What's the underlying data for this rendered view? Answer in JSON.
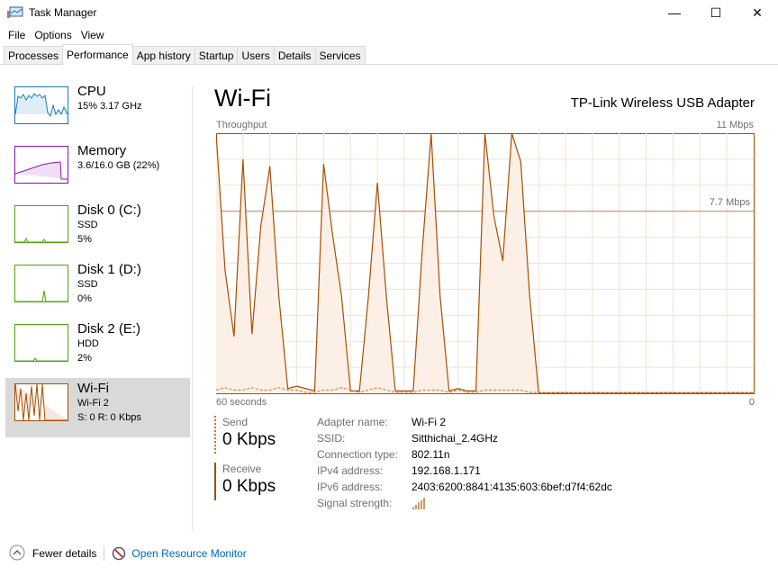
{
  "window": {
    "title": "Task Manager",
    "icon": "task-manager-icon",
    "controls": [
      "minimize",
      "maximize",
      "close"
    ]
  },
  "menu": [
    "File",
    "Options",
    "View"
  ],
  "tabs": [
    "Processes",
    "Performance",
    "App history",
    "Startup",
    "Users",
    "Details",
    "Services"
  ],
  "active_tab": "Performance",
  "sidebar": [
    {
      "name": "CPU",
      "l1": "15%  3.17 GHz",
      "l2": "",
      "color": "#117dbb"
    },
    {
      "name": "Memory",
      "l1": "3.6/16.0 GB (22%)",
      "l2": "",
      "color": "#8b12ae"
    },
    {
      "name": "Disk 0 (C:)",
      "l1": "SSD",
      "l2": "5%",
      "color": "#4da60c"
    },
    {
      "name": "Disk 1 (D:)",
      "l1": "SSD",
      "l2": "0%",
      "color": "#4da60c"
    },
    {
      "name": "Disk 2 (E:)",
      "l1": "HDD",
      "l2": "2%",
      "color": "#4da60c"
    },
    {
      "name": "Wi-Fi",
      "l1": "Wi-Fi 2",
      "l2": "S: 0 R: 0 Kbps",
      "color": "#a74f01"
    }
  ],
  "main": {
    "title": "Wi-Fi",
    "adapter": "TP-Link Wireless USB Adapter",
    "graph_label": "Throughput",
    "max_label": "11 Mbps",
    "mid_label": "7.7 Mbps",
    "x_left": "60 seconds",
    "x_right": "0"
  },
  "chart_data": {
    "type": "area",
    "ylim": [
      0,
      11
    ],
    "xlim": [
      60,
      0
    ],
    "reference_line": 7.7,
    "series": [
      {
        "name": "Receive",
        "values": [
          11,
          5.2,
          2.4,
          9.9,
          2.5,
          7.1,
          9.6,
          4.1,
          0.2,
          0.3,
          0.2,
          0.1,
          9.7,
          6.7,
          4.1,
          0.1,
          0.1,
          4.1,
          8.9,
          4.1,
          0.1,
          0.1,
          0.1,
          6.0,
          11,
          4.1,
          0.1,
          0.2,
          0.1,
          0.1,
          11,
          7.5,
          5.6,
          11,
          9.8,
          4.1,
          0,
          0,
          0,
          0,
          0,
          0,
          0,
          0,
          0,
          0,
          0,
          0,
          0,
          0,
          0,
          0,
          0,
          0,
          0,
          0,
          0,
          0,
          0,
          0,
          0
        ]
      },
      {
        "name": "Send",
        "values": [
          0.1,
          0.2,
          0.1,
          0.1,
          0.2,
          0.1,
          0.1,
          0.2,
          0.1,
          0.1,
          0,
          0,
          0.1,
          0.1,
          0.2,
          0.1,
          0,
          0.1,
          0.2,
          0.1,
          0,
          0,
          0,
          0.1,
          0.1,
          0.1,
          0,
          0.1,
          0,
          0,
          0.1,
          0.1,
          0.1,
          0.1,
          0.1,
          0,
          0,
          0,
          0,
          0,
          0,
          0,
          0,
          0,
          0,
          0,
          0,
          0,
          0,
          0,
          0,
          0,
          0,
          0,
          0,
          0,
          0,
          0,
          0,
          0,
          0
        ]
      }
    ]
  },
  "stats": {
    "send_label": "Send",
    "send_value": "0 Kbps",
    "receive_label": "Receive",
    "receive_value": "0 Kbps"
  },
  "props": [
    [
      "Adapter name:",
      "Wi-Fi 2"
    ],
    [
      "SSID:",
      "Sitthichai_2.4GHz"
    ],
    [
      "Connection type:",
      "802.11n"
    ],
    [
      "IPv4 address:",
      "192.168.1.171"
    ],
    [
      "IPv6 address:",
      "2403:6200:8841:4135:603:6bef:d7f4:62dc"
    ],
    [
      "Signal strength:",
      ""
    ]
  ],
  "signal_bars": 5,
  "footer": {
    "fewer": "Fewer details",
    "monitor": "Open Resource Monitor"
  }
}
